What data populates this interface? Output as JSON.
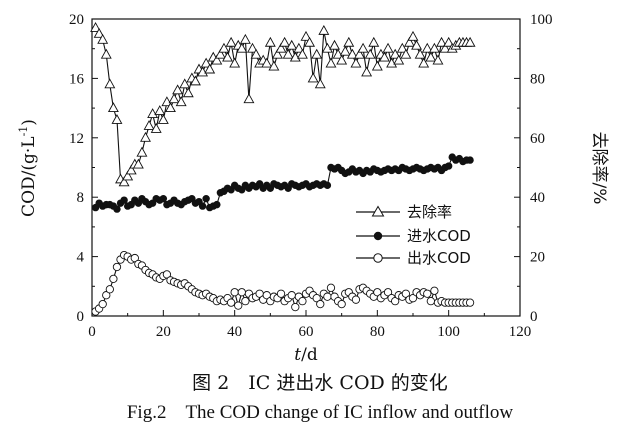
{
  "chart_data": {
    "type": "line",
    "xlabel": "t/d",
    "xlabel_italic": "t",
    "xlabel_unit": "/d",
    "ylabel": "COD/(g·L-1)",
    "ylabel_main": "COD/(g·L",
    "ylabel_sup": "-1",
    "ylabel_close": ")",
    "y2label": "去除率/%",
    "xlim": [
      0,
      120
    ],
    "ylim": [
      0,
      20
    ],
    "y2lim": [
      0,
      100
    ],
    "xticks": [
      "0",
      "20",
      "40",
      "60",
      "80",
      "100",
      "120"
    ],
    "yticks": [
      "0",
      "4",
      "8",
      "12",
      "16",
      "20"
    ],
    "y2ticks": [
      "0",
      "20",
      "40",
      "60",
      "80",
      "100"
    ],
    "grid": false,
    "legend_position": "center-right",
    "series": [
      {
        "name": "去除率",
        "axis": "right",
        "marker": "triangle-open",
        "x": [
          1,
          2,
          3,
          4,
          5,
          6,
          7,
          8,
          9,
          10,
          11,
          12,
          13,
          14,
          15,
          16,
          17,
          18,
          19,
          20,
          21,
          22,
          23,
          24,
          25,
          26,
          27,
          28,
          29,
          30,
          31,
          32,
          33,
          34,
          35,
          36,
          37,
          38,
          39,
          40,
          41,
          42,
          43,
          44,
          45,
          46,
          47,
          48,
          49,
          50,
          51,
          52,
          53,
          54,
          55,
          56,
          57,
          58,
          59,
          60,
          61,
          62,
          63,
          64,
          65,
          66,
          67,
          68,
          69,
          70,
          71,
          72,
          73,
          74,
          75,
          76,
          77,
          78,
          79,
          80,
          81,
          82,
          83,
          84,
          85,
          86,
          87,
          88,
          89,
          90,
          91,
          92,
          93,
          94,
          95,
          96,
          97,
          98,
          99,
          100,
          101,
          102,
          103,
          104,
          105,
          106
        ],
        "values": [
          97,
          95,
          93,
          88,
          78,
          70,
          66,
          46,
          45,
          47,
          49,
          51,
          51,
          55,
          60,
          64,
          68,
          63,
          69,
          66,
          72,
          70,
          73,
          76,
          72,
          78,
          75,
          80,
          79,
          83,
          82,
          85,
          83,
          87,
          86,
          88,
          90,
          87,
          92,
          85,
          91,
          90,
          93,
          73,
          90,
          88,
          85,
          86,
          85,
          92,
          84,
          88,
          90,
          92,
          88,
          91,
          87,
          90,
          88,
          94,
          92,
          80,
          88,
          78,
          96,
          90,
          85,
          91,
          88,
          86,
          89,
          92,
          88,
          85,
          88,
          90,
          82,
          88,
          92,
          84,
          88,
          87,
          90,
          85,
          88,
          86,
          90,
          88,
          92,
          94,
          91,
          88,
          85,
          90,
          87,
          90,
          86,
          92,
          90,
          92,
          90,
          91,
          92,
          92,
          92,
          92
        ]
      },
      {
        "name": "进水COD",
        "axis": "left",
        "marker": "circle-filled",
        "x": [
          1,
          2,
          3,
          4,
          5,
          6,
          7,
          8,
          9,
          10,
          11,
          12,
          13,
          14,
          15,
          16,
          17,
          18,
          19,
          20,
          21,
          22,
          23,
          24,
          25,
          26,
          27,
          28,
          29,
          30,
          31,
          32,
          33,
          34,
          35,
          36,
          37,
          38,
          39,
          40,
          41,
          42,
          43,
          44,
          45,
          46,
          47,
          48,
          49,
          50,
          51,
          52,
          53,
          54,
          55,
          56,
          57,
          58,
          59,
          60,
          61,
          62,
          63,
          64,
          65,
          66,
          67,
          68,
          69,
          70,
          71,
          72,
          73,
          74,
          75,
          76,
          77,
          78,
          79,
          80,
          81,
          82,
          83,
          84,
          85,
          86,
          87,
          88,
          89,
          90,
          91,
          92,
          93,
          94,
          95,
          96,
          97,
          98,
          99,
          100,
          101,
          102,
          103,
          104,
          105,
          106
        ],
        "values": [
          7.3,
          7.6,
          7.4,
          7.5,
          7.5,
          7.4,
          7.2,
          7.6,
          7.8,
          7.4,
          7.5,
          7.8,
          7.6,
          7.9,
          7.7,
          7.5,
          7.6,
          7.9,
          7.8,
          7.9,
          7.5,
          7.6,
          7.8,
          7.6,
          7.5,
          7.7,
          7.8,
          7.9,
          7.6,
          7.7,
          7.4,
          7.9,
          7.3,
          7.4,
          7.5,
          8.3,
          8.4,
          8.6,
          8.5,
          8.8,
          8.6,
          8.5,
          8.8,
          8.6,
          8.8,
          8.7,
          8.9,
          8.6,
          8.8,
          8.6,
          8.9,
          8.8,
          8.7,
          8.8,
          8.6,
          8.9,
          8.8,
          8.7,
          8.8,
          8.9,
          8.7,
          8.8,
          8.9,
          8.8,
          8.9,
          8.8,
          10.0,
          9.9,
          10.0,
          9.8,
          9.6,
          9.7,
          9.9,
          9.7,
          9.8,
          9.6,
          9.8,
          9.7,
          9.9,
          9.8,
          9.7,
          9.8,
          9.9,
          9.8,
          9.9,
          9.8,
          10.0,
          9.9,
          9.8,
          9.9,
          10.0,
          9.9,
          9.8,
          9.9,
          10.0,
          9.9,
          10.0,
          9.8,
          10.0,
          10.1,
          10.7,
          10.5,
          10.6,
          10.4,
          10.5,
          10.5
        ]
      },
      {
        "name": "出水COD",
        "axis": "left",
        "marker": "circle-open",
        "x": [
          1,
          2,
          3,
          4,
          5,
          6,
          7,
          8,
          9,
          10,
          11,
          12,
          13,
          14,
          15,
          16,
          17,
          18,
          19,
          20,
          21,
          22,
          23,
          24,
          25,
          26,
          27,
          28,
          29,
          30,
          31,
          32,
          33,
          34,
          35,
          36,
          37,
          38,
          39,
          40,
          41,
          42,
          43,
          44,
          45,
          46,
          47,
          48,
          49,
          50,
          51,
          52,
          53,
          54,
          55,
          56,
          57,
          58,
          59,
          60,
          61,
          62,
          63,
          64,
          65,
          66,
          67,
          68,
          69,
          70,
          71,
          72,
          73,
          74,
          75,
          76,
          77,
          78,
          79,
          80,
          81,
          82,
          83,
          84,
          85,
          86,
          87,
          88,
          89,
          90,
          91,
          92,
          93,
          94,
          95,
          96,
          97,
          98,
          99,
          100,
          101,
          102,
          103,
          104,
          105,
          106
        ],
        "values": [
          0.3,
          0.5,
          0.8,
          1.4,
          1.8,
          2.5,
          3.3,
          3.8,
          4.1,
          4.0,
          3.8,
          3.9,
          3.5,
          3.4,
          3.1,
          2.9,
          2.8,
          2.6,
          2.5,
          2.7,
          2.8,
          2.4,
          2.3,
          2.2,
          2.1,
          2.2,
          2.0,
          1.8,
          1.6,
          1.5,
          1.4,
          1.5,
          1.3,
          1.2,
          1.0,
          1.1,
          1.0,
          1.2,
          0.9,
          1.6,
          0.7,
          1.6,
          1.0,
          1.5,
          1.2,
          1.3,
          1.5,
          1.1,
          1.4,
          1.0,
          1.3,
          1.2,
          1.5,
          1.0,
          1.2,
          1.4,
          0.6,
          1.3,
          1.0,
          1.5,
          1.7,
          1.4,
          1.2,
          0.8,
          1.5,
          1.3,
          1.9,
          1.3,
          1.0,
          0.8,
          1.5,
          1.6,
          1.3,
          1.1,
          1.8,
          1.9,
          1.7,
          1.5,
          1.3,
          1.6,
          1.2,
          1.4,
          1.6,
          1.2,
          1.0,
          1.4,
          1.3,
          1.5,
          1.1,
          1.2,
          1.6,
          1.4,
          1.6,
          1.5,
          1.0,
          1.7,
          0.9,
          1.0,
          0.9,
          0.9,
          0.9,
          0.9,
          0.9,
          0.9,
          0.9,
          0.9
        ]
      }
    ]
  },
  "captions": {
    "cn": "图 2　IC 进出水 COD 的变化",
    "en": "Fig.2　The COD change of IC inflow and outflow"
  }
}
